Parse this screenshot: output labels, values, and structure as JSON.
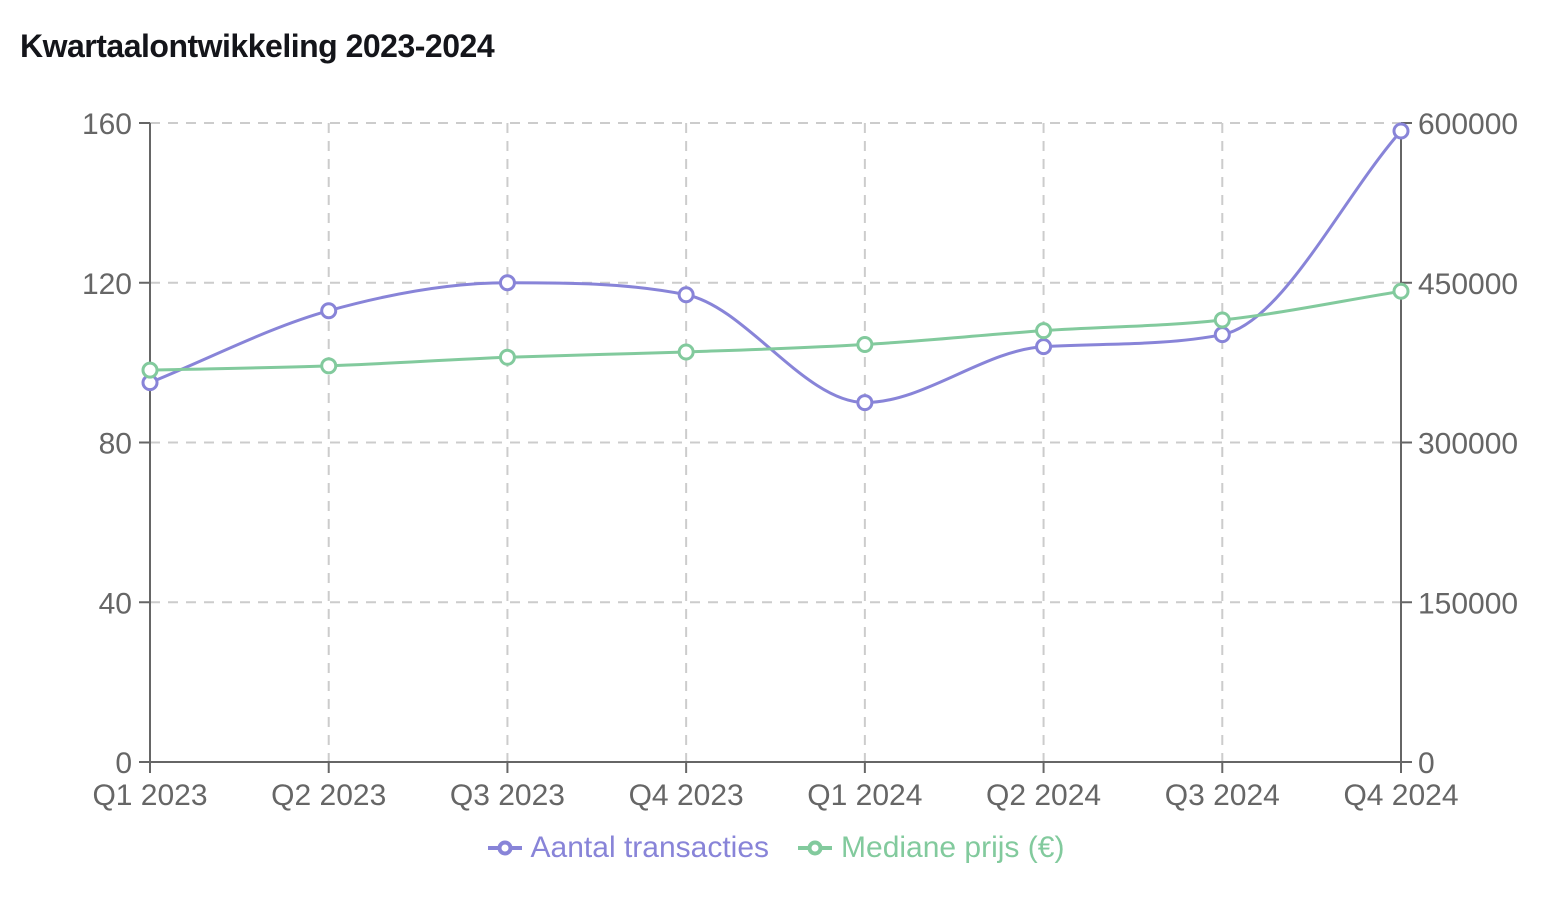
{
  "chart_data": {
    "type": "line",
    "title": "Kwartaalontwikkeling 2023-2024",
    "categories": [
      "Q1 2023",
      "Q2 2023",
      "Q3 2023",
      "Q4 2023",
      "Q1 2024",
      "Q2 2024",
      "Q3 2024",
      "Q4 2024"
    ],
    "series": [
      {
        "name": "Aantal transacties",
        "axis": "left",
        "color": "#8884d8",
        "values": [
          95,
          113,
          120,
          117,
          90,
          104,
          107,
          158
        ]
      },
      {
        "name": "Mediane prijs (€)",
        "axis": "right",
        "color": "#82ca9d",
        "values": [
          368000,
          372000,
          380000,
          385000,
          392000,
          405000,
          415000,
          442000
        ]
      }
    ],
    "left_axis": {
      "range": [
        0,
        160
      ],
      "ticks": [
        0,
        40,
        80,
        120,
        160
      ]
    },
    "right_axis": {
      "range": [
        0,
        600000
      ],
      "ticks": [
        0,
        150000,
        300000,
        450000,
        600000
      ]
    },
    "grid": {
      "shown": true,
      "dashed": true
    },
    "legend_position": "bottom",
    "marker_style": "open-circle",
    "curve": "monotone",
    "colors": {
      "grid": "#cccccc",
      "axis": "#666666",
      "tick_text": "#666666",
      "title_text": "#14151a",
      "marker_fill": "#ffffff"
    }
  }
}
